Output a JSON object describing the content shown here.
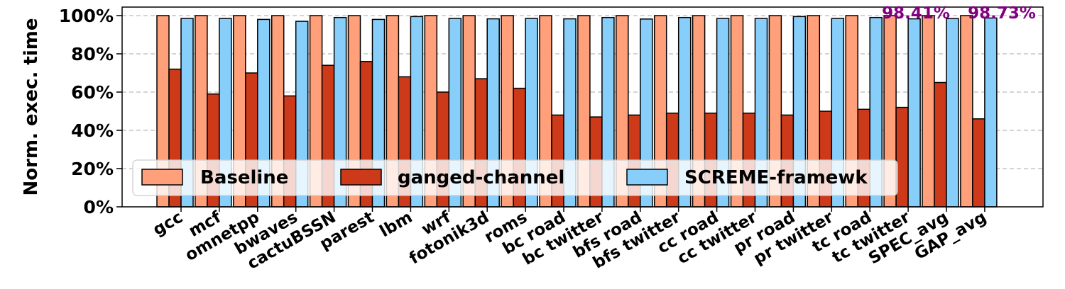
{
  "chart_data": {
    "type": "bar",
    "ylabel": "Norm. exec. time",
    "ylim": [
      0,
      100
    ],
    "y_ticks": [
      "0%",
      "20%",
      "40%",
      "60%",
      "80%",
      "100%"
    ],
    "y_tick_values": [
      0,
      20,
      40,
      60,
      80,
      100
    ],
    "grid": "horizontal dashed",
    "legend_position": "lower-left",
    "categories": [
      "gcc",
      "mcf",
      "omnetpp",
      "bwaves",
      "cactuBSSN",
      "parest",
      "lbm",
      "wrf",
      "fotonik3d",
      "roms",
      "bc road",
      "bc twitter",
      "bfs road",
      "bfs twitter",
      "cc road",
      "cc twitter",
      "pr road",
      "pr twitter",
      "tc road",
      "tc twitter",
      "SPEC_avg",
      "GAP_avg"
    ],
    "series": [
      {
        "name": "Baseline",
        "color": "#FFA07A",
        "values": [
          100,
          100,
          100,
          100,
          100,
          100,
          100,
          100,
          100,
          100,
          100,
          100,
          100,
          100,
          100,
          100,
          100,
          100,
          100,
          100,
          100,
          100
        ]
      },
      {
        "name": "ganged-channel",
        "color": "#CC3A1A",
        "values": [
          72,
          59,
          70,
          58,
          74,
          76,
          68,
          60,
          67,
          62,
          48,
          47,
          48,
          49,
          49,
          49,
          48,
          50,
          51,
          52,
          65,
          46
        ]
      },
      {
        "name": "SCREME-framewk",
        "color": "#87CEFA",
        "values": [
          98.5,
          98.5,
          98,
          97,
          99,
          98,
          99.5,
          98.5,
          98.3,
          98.5,
          98.3,
          99,
          98.2,
          99,
          98.5,
          98.5,
          99.5,
          98.5,
          99,
          98.3,
          98.41,
          98.73
        ]
      }
    ],
    "annotations": [
      "98.41%",
      "98.73%"
    ],
    "annotation_color": "#800080"
  }
}
